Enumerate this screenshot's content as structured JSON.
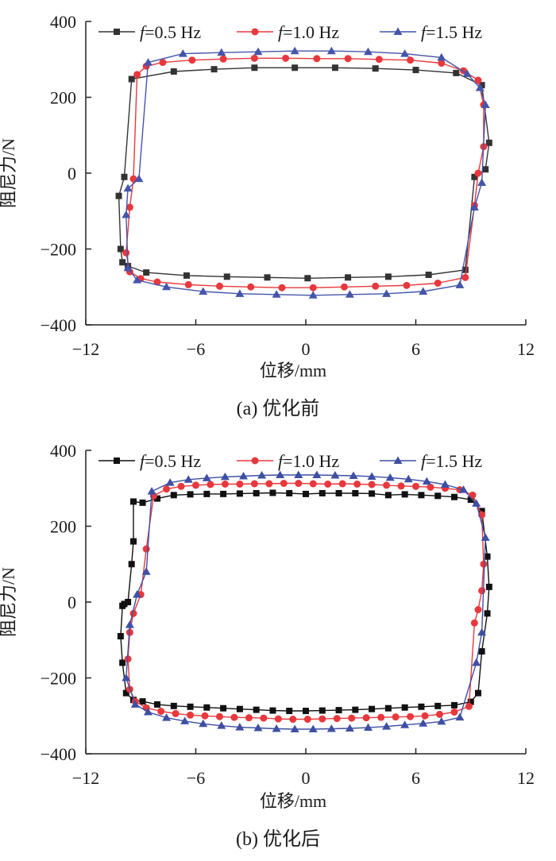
{
  "chart_data": [
    {
      "type": "line",
      "caption": "(a) 优化前",
      "xlabel": "位移/mm",
      "ylabel": "阻尼力/N",
      "xlim": [
        -12,
        12
      ],
      "ylim": [
        -400,
        400
      ],
      "xticks": [
        "−12",
        "−6",
        "0",
        "6",
        "12"
      ],
      "yticks": [
        "400",
        "200",
        "0",
        "−200",
        "−400"
      ],
      "legend_position": "top",
      "series": [
        {
          "name_prefix": "f",
          "name_suffix": "=0.5 Hz",
          "color": "#333333",
          "marker": "square",
          "x": [
            -9.5,
            -7.2,
            -5.0,
            -2.8,
            -0.6,
            1.6,
            3.8,
            6.0,
            8.2,
            9.6,
            10.0,
            9.8,
            9.2,
            8.7,
            6.7,
            4.5,
            2.3,
            0.1,
            -2.1,
            -4.3,
            -6.5,
            -8.7,
            -9.7,
            -10.0,
            -10.1,
            -10.2,
            -9.9
          ],
          "y": [
            248,
            268,
            274,
            278,
            278,
            278,
            276,
            272,
            264,
            232,
            80,
            10,
            -10,
            -255,
            -268,
            -273,
            -275,
            -277,
            -275,
            -273,
            -270,
            -262,
            -245,
            -235,
            -200,
            -60,
            -10
          ]
        },
        {
          "name_prefix": "f",
          "name_suffix": "=1.0 Hz",
          "color": "#e8383d",
          "marker": "circle",
          "x": [
            -9.2,
            -8.7,
            -7.8,
            -6.2,
            -4.5,
            -2.8,
            -1.1,
            0.6,
            2.3,
            4.0,
            5.7,
            7.4,
            8.6,
            9.4,
            9.7,
            9.7,
            9.4,
            9.2,
            8.7,
            7.2,
            5.5,
            3.8,
            2.1,
            0.4,
            -1.3,
            -3.0,
            -4.7,
            -6.4,
            -8.1,
            -9.0,
            -9.6,
            -9.8,
            -9.6,
            -9.4
          ],
          "y": [
            260,
            282,
            292,
            298,
            301,
            303,
            303,
            302,
            302,
            300,
            298,
            290,
            270,
            245,
            180,
            70,
            0,
            -85,
            -275,
            -290,
            -296,
            -298,
            -300,
            -302,
            -302,
            -300,
            -298,
            -294,
            -287,
            -278,
            -260,
            -210,
            -90,
            -15
          ]
        },
        {
          "name_prefix": "f",
          "name_suffix": "=1.5 Hz",
          "color": "#4455aa",
          "marker": "triangle",
          "x": [
            -8.6,
            -6.7,
            -4.6,
            -2.6,
            -0.6,
            1.4,
            3.4,
            5.4,
            7.4,
            8.8,
            9.5,
            9.8,
            9.6,
            9.2,
            8.4,
            6.4,
            4.4,
            2.4,
            0.4,
            -1.6,
            -3.6,
            -5.6,
            -7.6,
            -9.2,
            -9.7,
            -9.8,
            -9.7,
            -9.1
          ],
          "y": [
            292,
            315,
            318,
            320,
            322,
            322,
            320,
            315,
            305,
            262,
            225,
            180,
            -25,
            -90,
            -295,
            -312,
            -318,
            -320,
            -322,
            -320,
            -318,
            -312,
            -300,
            -282,
            -250,
            -110,
            -40,
            -15
          ]
        }
      ]
    },
    {
      "type": "line",
      "caption": "(b) 优化后",
      "xlabel": "位移/mm",
      "ylabel": "阻尼力/N",
      "xlim": [
        -12,
        12
      ],
      "ylim": [
        -400,
        400
      ],
      "xticks": [
        "−12",
        "−6",
        "0",
        "6",
        "12"
      ],
      "yticks": [
        "400",
        "200",
        "0",
        "−200",
        "−400"
      ],
      "legend_position": "top",
      "series": [
        {
          "name_prefix": "f",
          "name_suffix": "=0.5 Hz",
          "color": "#111111",
          "marker": "square",
          "x": [
            -9.4,
            -8.9,
            -8.1,
            -7.2,
            -6.3,
            -5.4,
            -4.5,
            -3.6,
            -2.7,
            -1.8,
            -0.9,
            0.0,
            0.9,
            1.8,
            2.7,
            3.6,
            4.5,
            5.4,
            6.3,
            7.2,
            8.1,
            9.0,
            9.6,
            9.9,
            10.0,
            9.9,
            9.6,
            9.4,
            9.0,
            8.1,
            7.2,
            6.3,
            5.4,
            4.5,
            3.6,
            2.7,
            1.8,
            0.9,
            0.0,
            -0.9,
            -1.8,
            -2.7,
            -3.6,
            -4.5,
            -5.4,
            -6.3,
            -7.2,
            -8.1,
            -8.9,
            -9.4,
            -9.8,
            -10.0,
            -10.1,
            -10.0,
            -9.9,
            -9.7,
            -9.5,
            -9.4
          ],
          "y": [
            265,
            262,
            273,
            282,
            284,
            285,
            285,
            286,
            287,
            288,
            287,
            285,
            287,
            287,
            287,
            286,
            282,
            284,
            282,
            280,
            277,
            270,
            240,
            120,
            40,
            -30,
            -130,
            -240,
            -263,
            -272,
            -274,
            -276,
            -278,
            -280,
            -282,
            -284,
            -285,
            -286,
            -287,
            -287,
            -286,
            -284,
            -282,
            -280,
            -278,
            -276,
            -274,
            -270,
            -262,
            -258,
            -240,
            -160,
            -90,
            -10,
            -5,
            0,
            100,
            160
          ]
        },
        {
          "name_prefix": "f",
          "name_suffix": "=1.0 Hz",
          "color": "#e8383d",
          "marker": "circle",
          "x": [
            -8.3,
            -7.6,
            -6.8,
            -6.0,
            -5.2,
            -4.4,
            -3.6,
            -2.8,
            -2.0,
            -1.2,
            -0.4,
            0.4,
            1.2,
            2.0,
            2.8,
            3.6,
            4.4,
            5.2,
            6.0,
            6.8,
            7.6,
            8.4,
            9.1,
            9.6,
            9.7,
            9.6,
            9.4,
            9.2,
            8.9,
            8.1,
            7.3,
            6.5,
            5.7,
            4.9,
            4.1,
            3.3,
            2.5,
            1.7,
            0.9,
            0.1,
            -0.7,
            -1.5,
            -2.3,
            -3.1,
            -3.9,
            -4.7,
            -5.5,
            -6.3,
            -7.1,
            -7.9,
            -8.7,
            -9.3,
            -9.6,
            -9.7,
            -9.6,
            -9.4,
            -9.0,
            -8.7
          ],
          "y": [
            280,
            298,
            305,
            308,
            310,
            311,
            311,
            312,
            312,
            313,
            313,
            312,
            311,
            312,
            311,
            310,
            308,
            306,
            305,
            303,
            300,
            296,
            282,
            230,
            100,
            30,
            -20,
            -55,
            -275,
            -290,
            -296,
            -300,
            -302,
            -303,
            -304,
            -305,
            -306,
            -307,
            -308,
            -309,
            -309,
            -308,
            -306,
            -305,
            -304,
            -302,
            -300,
            -298,
            -294,
            -288,
            -279,
            -262,
            -230,
            -150,
            -80,
            -30,
            20,
            140
          ]
        },
        {
          "name_prefix": "f",
          "name_suffix": "=1.5 Hz",
          "color": "#3e4fa3",
          "marker": "triangle",
          "x": [
            -8.4,
            -7.4,
            -6.4,
            -5.4,
            -4.4,
            -3.4,
            -2.4,
            -1.4,
            -0.4,
            0.6,
            1.6,
            2.6,
            3.6,
            4.6,
            5.6,
            6.6,
            7.6,
            8.6,
            9.3,
            9.8,
            9.6,
            9.3,
            8.4,
            7.4,
            6.4,
            5.4,
            4.4,
            3.4,
            2.4,
            1.4,
            0.4,
            -0.6,
            -1.6,
            -2.6,
            -3.6,
            -4.6,
            -5.6,
            -6.6,
            -7.6,
            -8.6,
            -9.3,
            -9.8,
            -9.6,
            -9.2,
            -8.7
          ],
          "y": [
            292,
            315,
            323,
            327,
            330,
            332,
            334,
            335,
            335,
            335,
            334,
            333,
            331,
            328,
            324,
            318,
            310,
            296,
            260,
            170,
            -80,
            -160,
            -304,
            -315,
            -320,
            -324,
            -328,
            -331,
            -333,
            -334,
            -335,
            -335,
            -334,
            -332,
            -330,
            -326,
            -321,
            -314,
            -305,
            -290,
            -270,
            -200,
            -60,
            20,
            80
          ]
        }
      ]
    }
  ]
}
